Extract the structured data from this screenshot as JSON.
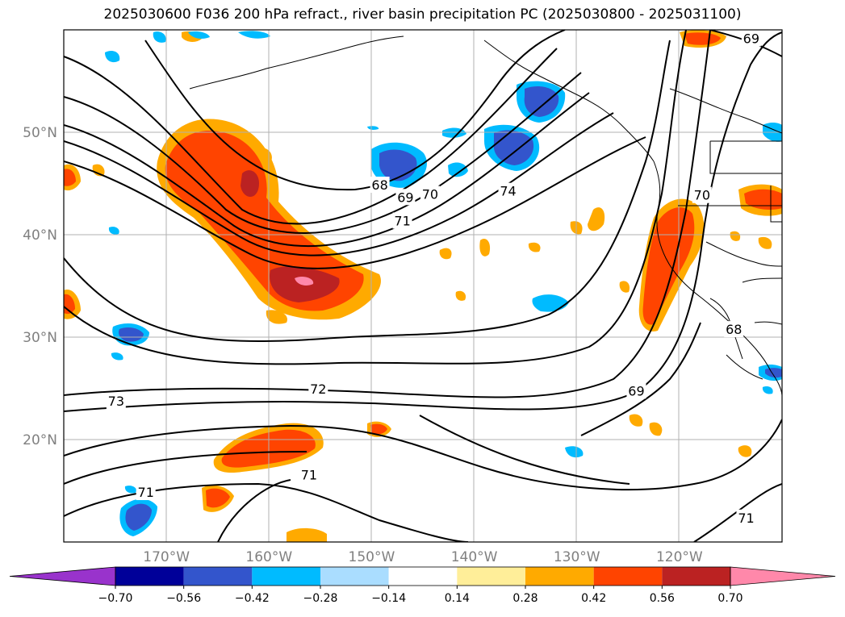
{
  "title": "2025030600 F036 200 hPa refract., river basin precipitation PC (2025030800 - 2025031100)",
  "map": {
    "projection": "plate-carree",
    "lon_range": [
      -180,
      -110
    ],
    "lat_range": [
      10,
      60
    ],
    "gridlines": true,
    "lat_ticks": [
      {
        "value": 50,
        "label": "50°N"
      },
      {
        "value": 40,
        "label": "40°N"
      },
      {
        "value": 30,
        "label": "30°N"
      },
      {
        "value": 20,
        "label": "20°N"
      }
    ],
    "lon_ticks": [
      {
        "value": -170,
        "label": "170°W"
      },
      {
        "value": -160,
        "label": "160°W"
      },
      {
        "value": -150,
        "label": "150°W"
      },
      {
        "value": -140,
        "label": "140°W"
      },
      {
        "value": -130,
        "label": "130°W"
      },
      {
        "value": -120,
        "label": "120°W"
      }
    ],
    "contour_labels": [
      {
        "text": "68",
        "lon": -149.2,
        "lat": 44.8
      },
      {
        "text": "69",
        "lon": -146.7,
        "lat": 43.6
      },
      {
        "text": "70",
        "lon": -144.3,
        "lat": 43.9
      },
      {
        "text": "71",
        "lon": -147.0,
        "lat": 41.3
      },
      {
        "text": "74",
        "lon": -136.7,
        "lat": 44.2
      },
      {
        "text": "72",
        "lon": -155.2,
        "lat": 24.9
      },
      {
        "text": "73",
        "lon": -174.9,
        "lat": 23.7
      },
      {
        "text": "69",
        "lon": -124.2,
        "lat": 24.7
      },
      {
        "text": "71",
        "lon": -156.1,
        "lat": 16.5
      },
      {
        "text": "71",
        "lon": -172.0,
        "lat": 14.8
      },
      {
        "text": "71",
        "lon": -113.5,
        "lat": 12.3
      },
      {
        "text": "68",
        "lon": -114.7,
        "lat": 30.7
      },
      {
        "text": "69",
        "lon": -113.0,
        "lat": 59.1
      },
      {
        "text": "70",
        "lon": -117.8,
        "lat": 43.8
      }
    ]
  },
  "colorbar": {
    "ticks": [
      "−0.70",
      "−0.56",
      "−0.42",
      "−0.28",
      "−0.14",
      "0.14",
      "0.28",
      "0.42",
      "0.56",
      "0.70"
    ],
    "colors": [
      "#9933cc",
      "#000099",
      "#3355cc",
      "#00bbff",
      "#aaddff",
      "#ffffff",
      "#ffee99",
      "#ffaa00",
      "#ff4400",
      "#bb2222",
      "#ff88aa"
    ]
  }
}
